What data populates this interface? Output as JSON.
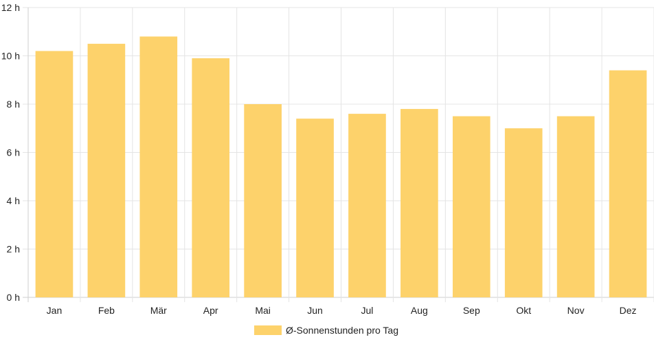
{
  "chart_data": {
    "type": "bar",
    "categories": [
      "Jan",
      "Feb",
      "Mär",
      "Apr",
      "Mai",
      "Jun",
      "Jul",
      "Aug",
      "Sep",
      "Okt",
      "Nov",
      "Dez"
    ],
    "series": [
      {
        "name": "Ø-Sonnenstunden pro Tag",
        "values": [
          10.2,
          10.5,
          10.8,
          9.9,
          8.0,
          7.4,
          7.6,
          7.8,
          7.5,
          7.0,
          7.5,
          9.4
        ],
        "color": "#fdd26b"
      }
    ],
    "y_ticks": [
      "0 h",
      "2 h",
      "4 h",
      "6 h",
      "8 h",
      "10 h",
      "12 h"
    ],
    "ylim": [
      0,
      12
    ],
    "grid": true,
    "legend_position": "bottom-center"
  }
}
